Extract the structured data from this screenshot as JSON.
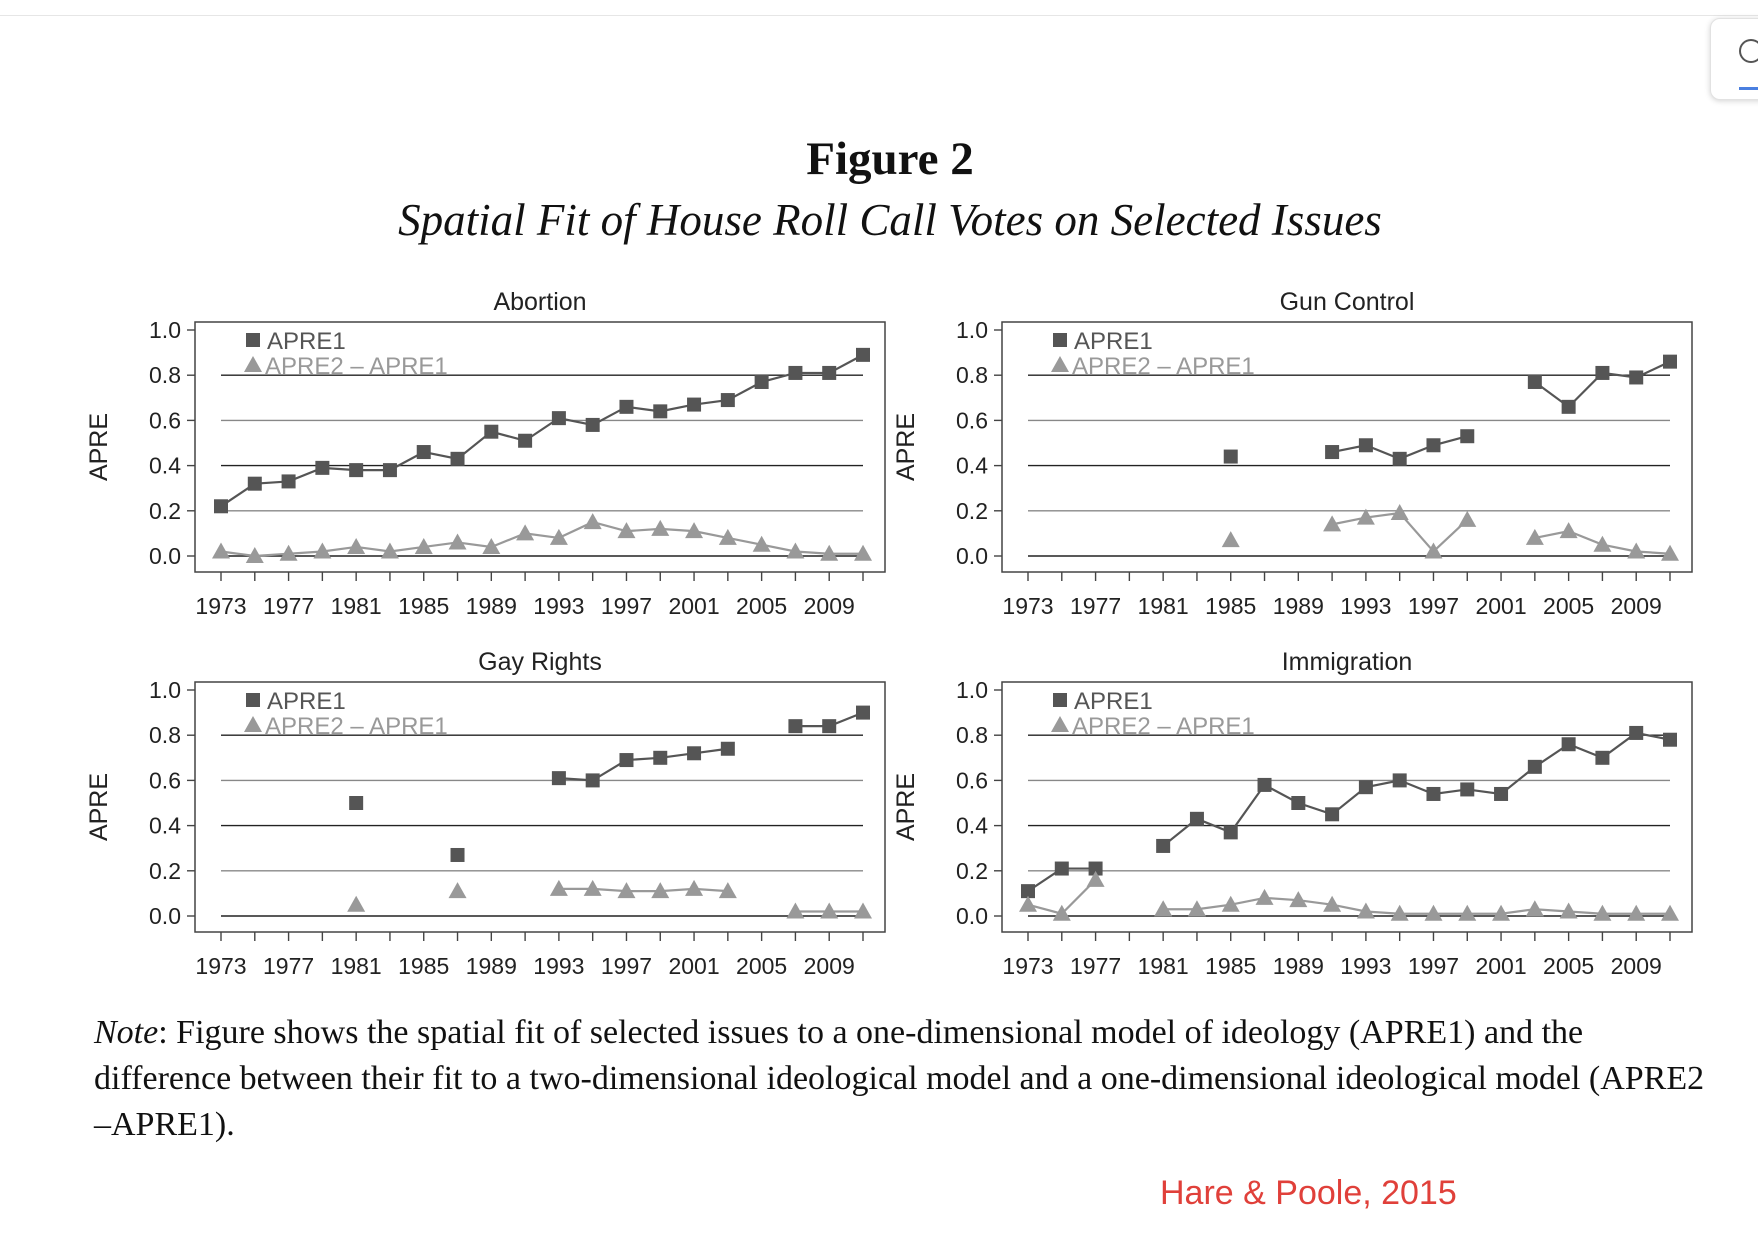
{
  "header": {
    "title": "Figure 2",
    "subtitle": "Spatial Fit of House Roll Call Votes on Selected Issues"
  },
  "legend": {
    "series1": "APRE1",
    "series2": "APRE2 – APRE1"
  },
  "note": {
    "label": "Note",
    "text": ": Figure shows the spatial fit of selected issues to a one-dimensional model of ideology (APRE1) and the difference between their fit to a two-dimensional ideological model and a one-dimensional ideological model (APRE2 –APRE1)."
  },
  "credit": "Hare & Poole, 2015",
  "colors": {
    "apre1": "#555555",
    "diff": "#999999",
    "grid_dark": "#222222",
    "grid_light": "#888888",
    "credit": "#e0403a"
  },
  "chart_data": [
    {
      "type": "line",
      "title": "Abortion",
      "ylabel": "APRE",
      "ylim": [
        0,
        1
      ],
      "yticks": [
        "0.0",
        "0.2",
        "0.4",
        "0.6",
        "0.8",
        "1.0"
      ],
      "x": [
        1973,
        1975,
        1977,
        1979,
        1981,
        1983,
        1985,
        1987,
        1989,
        1991,
        1993,
        1995,
        1997,
        1999,
        2001,
        2003,
        2005,
        2007,
        2009,
        2011
      ],
      "xticklabels": [
        "1973",
        "1977",
        "1981",
        "1985",
        "1989",
        "1993",
        "1997",
        "2001",
        "2005",
        "2009"
      ],
      "series": [
        {
          "name": "APRE1",
          "marker": "square",
          "values": [
            0.22,
            0.32,
            0.33,
            0.39,
            0.38,
            0.38,
            0.46,
            0.43,
            0.55,
            0.51,
            0.61,
            0.58,
            0.66,
            0.64,
            0.67,
            0.69,
            0.77,
            0.81,
            0.81,
            0.89
          ]
        },
        {
          "name": "APRE2 – APRE1",
          "marker": "triangle",
          "values": [
            0.02,
            0.0,
            0.01,
            0.02,
            0.04,
            0.02,
            0.04,
            0.06,
            0.04,
            0.1,
            0.08,
            0.15,
            0.11,
            0.12,
            0.11,
            0.08,
            0.05,
            0.02,
            0.01,
            0.01
          ]
        }
      ],
      "grid": true,
      "legend_position": "top-left"
    },
    {
      "type": "line",
      "title": "Gun Control",
      "ylabel": "APRE",
      "ylim": [
        0,
        1
      ],
      "yticks": [
        "0.0",
        "0.2",
        "0.4",
        "0.6",
        "0.8",
        "1.0"
      ],
      "x": [
        1973,
        1975,
        1977,
        1979,
        1981,
        1983,
        1985,
        1987,
        1989,
        1991,
        1993,
        1995,
        1997,
        1999,
        2001,
        2003,
        2005,
        2007,
        2009,
        2011
      ],
      "xticklabels": [
        "1973",
        "1977",
        "1981",
        "1985",
        "1989",
        "1993",
        "1997",
        "2001",
        "2005",
        "2009"
      ],
      "series": [
        {
          "name": "APRE1",
          "marker": "square",
          "values": [
            null,
            null,
            null,
            null,
            null,
            null,
            0.44,
            null,
            null,
            0.46,
            0.49,
            0.43,
            0.49,
            0.53,
            null,
            0.77,
            0.66,
            0.81,
            0.79,
            0.86
          ]
        },
        {
          "name": "APRE2 – APRE1",
          "marker": "triangle",
          "values": [
            null,
            null,
            null,
            null,
            null,
            null,
            0.07,
            null,
            null,
            0.14,
            0.17,
            0.19,
            0.02,
            0.16,
            null,
            0.08,
            0.11,
            0.05,
            0.02,
            0.01
          ]
        }
      ],
      "grid": true,
      "legend_position": "top-left"
    },
    {
      "type": "line",
      "title": "Gay Rights",
      "ylabel": "APRE",
      "ylim": [
        0,
        1
      ],
      "yticks": [
        "0.0",
        "0.2",
        "0.4",
        "0.6",
        "0.8",
        "1.0"
      ],
      "x": [
        1973,
        1975,
        1977,
        1979,
        1981,
        1983,
        1985,
        1987,
        1989,
        1991,
        1993,
        1995,
        1997,
        1999,
        2001,
        2003,
        2005,
        2007,
        2009,
        2011
      ],
      "xticklabels": [
        "1973",
        "1977",
        "1981",
        "1985",
        "1989",
        "1993",
        "1997",
        "2001",
        "2005",
        "2009"
      ],
      "series": [
        {
          "name": "APRE1",
          "marker": "square",
          "values": [
            null,
            null,
            null,
            null,
            0.5,
            null,
            null,
            0.27,
            null,
            null,
            0.61,
            0.6,
            0.69,
            0.7,
            0.72,
            0.74,
            null,
            0.84,
            0.84,
            0.9
          ]
        },
        {
          "name": "APRE2 – APRE1",
          "marker": "triangle",
          "values": [
            null,
            null,
            null,
            null,
            0.05,
            null,
            null,
            0.11,
            null,
            null,
            0.12,
            0.12,
            0.11,
            0.11,
            0.12,
            0.11,
            null,
            0.02,
            0.02,
            0.02
          ]
        }
      ],
      "grid": true,
      "legend_position": "top-left"
    },
    {
      "type": "line",
      "title": "Immigration",
      "ylabel": "APRE",
      "ylim": [
        0,
        1
      ],
      "yticks": [
        "0.0",
        "0.2",
        "0.4",
        "0.6",
        "0.8",
        "1.0"
      ],
      "x": [
        1973,
        1975,
        1977,
        1979,
        1981,
        1983,
        1985,
        1987,
        1989,
        1991,
        1993,
        1995,
        1997,
        1999,
        2001,
        2003,
        2005,
        2007,
        2009,
        2011
      ],
      "xticklabels": [
        "1973",
        "1977",
        "1981",
        "1985",
        "1989",
        "1993",
        "1997",
        "2001",
        "2005",
        "2009"
      ],
      "series": [
        {
          "name": "APRE1",
          "marker": "square",
          "values": [
            0.11,
            0.21,
            0.21,
            null,
            0.31,
            0.43,
            0.37,
            0.58,
            0.5,
            0.45,
            0.57,
            0.6,
            0.54,
            0.56,
            0.54,
            0.66,
            0.76,
            0.7,
            0.81,
            0.78
          ]
        },
        {
          "name": "APRE2 – APRE1",
          "marker": "triangle",
          "values": [
            0.05,
            0.01,
            0.16,
            null,
            0.03,
            0.03,
            0.05,
            0.08,
            0.07,
            0.05,
            0.02,
            0.01,
            0.01,
            0.01,
            0.01,
            0.03,
            0.02,
            0.01,
            0.01,
            0.01
          ]
        }
      ],
      "grid": true,
      "legend_position": "top-left"
    }
  ]
}
